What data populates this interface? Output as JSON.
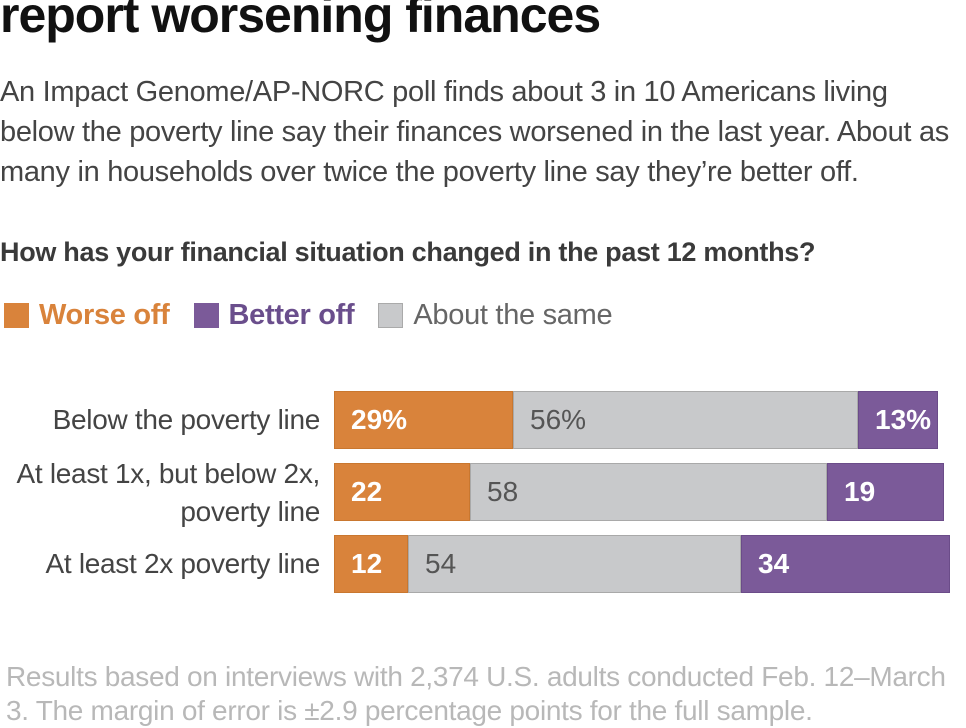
{
  "headline": "report worsening finances",
  "dek": "An Impact Genome/AP-NORC poll finds about 3 in 10 Americans living below the poverty line say their finances worsened in the last year. About as many in households over twice the poverty line say they’re better off.",
  "note": "Results based on interviews with 2,374 U.S. adults conducted Feb. 12–March 3. The margin of error is ±2.9 percentage points for the full sample.",
  "colors": {
    "worse": "#d9833b",
    "worse_text": "#d9833b",
    "better": "#7b5a99",
    "better_text": "#6a4e8c",
    "same": "#c8c9cb",
    "same_text": "#666666"
  },
  "chart_data": {
    "type": "bar",
    "orientation": "horizontal",
    "stacked": true,
    "title": "How has your financial situation changed in the past 12 months?",
    "legend_placement": "top-left",
    "grid": false,
    "categories": [
      "Below the poverty line",
      "At least 1x, but below 2x, poverty line",
      "At least 2x poverty line"
    ],
    "category_lines": [
      [
        "Below the poverty line"
      ],
      [
        "At least 1x, but below 2x,",
        "poverty line"
      ],
      [
        "At least 2x poverty line"
      ]
    ],
    "xlim": [
      0,
      100
    ],
    "series": [
      {
        "name": "Worse off",
        "values": [
          29,
          22,
          12
        ],
        "labels": [
          "29%",
          "22",
          "12"
        ]
      },
      {
        "name": "About the same",
        "values": [
          56,
          58,
          54
        ],
        "labels": [
          "56%",
          "58",
          "54"
        ]
      },
      {
        "name": "Better off",
        "values": [
          13,
          19,
          34
        ],
        "labels": [
          "13%",
          "19",
          "34"
        ]
      }
    ],
    "legend": [
      {
        "name": "Worse off",
        "key": "worse"
      },
      {
        "name": "Better off",
        "key": "better"
      },
      {
        "name": "About the same",
        "key": "same"
      }
    ]
  }
}
